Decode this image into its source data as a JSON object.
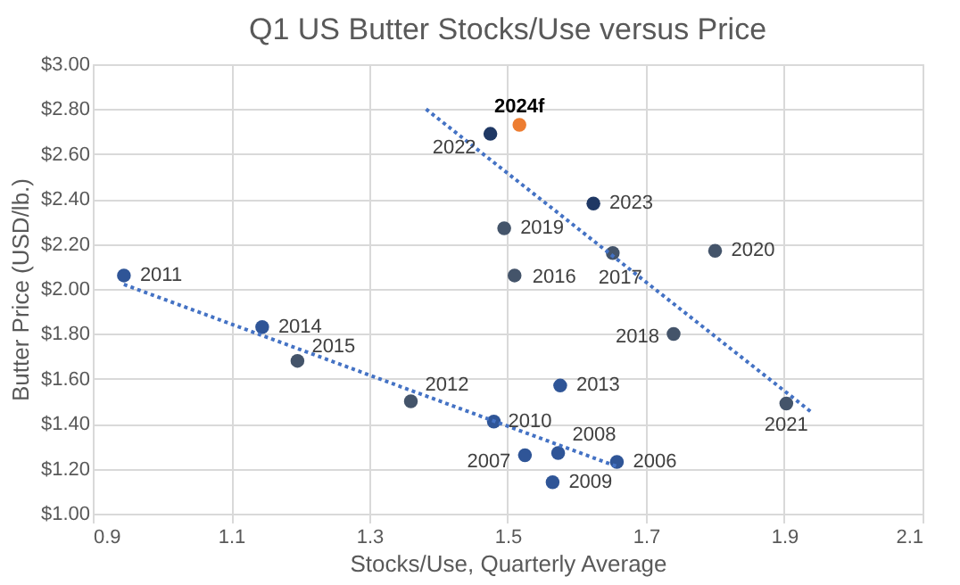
{
  "chart_data": {
    "type": "scatter",
    "title": "Q1 US Butter Stocks/Use versus Price",
    "xlabel": "Stocks/Use, Quarterly Average",
    "ylabel": "Butter Price (USD/lb.)",
    "xlim": [
      0.9,
      2.1
    ],
    "xticks": [
      0.9,
      1.1,
      1.3,
      1.5,
      1.7,
      1.9,
      2.1
    ],
    "ylim": [
      1.0,
      3.0
    ],
    "yticks": [
      {
        "value": 1.0,
        "label": "$1.00"
      },
      {
        "value": 1.2,
        "label": "$1.20"
      },
      {
        "value": 1.4,
        "label": "$1.40"
      },
      {
        "value": 1.6,
        "label": "$1.60"
      },
      {
        "value": 1.8,
        "label": "$1.80"
      },
      {
        "value": 2.0,
        "label": "$2.00"
      },
      {
        "value": 2.2,
        "label": "$2.20"
      },
      {
        "value": 2.4,
        "label": "$2.40"
      },
      {
        "value": 2.6,
        "label": "$2.60"
      },
      {
        "value": 2.8,
        "label": "$2.80"
      },
      {
        "value": 3.0,
        "label": "$3.00"
      }
    ],
    "grid": true,
    "legend": false,
    "series": [
      {
        "type": "scatter",
        "marker": "circle",
        "x": [
          0.945,
          1.145,
          1.196,
          1.36,
          1.48,
          1.525,
          1.573,
          1.658,
          1.565,
          1.576,
          1.903,
          1.475,
          1.517,
          1.624,
          1.495,
          1.652,
          1.8,
          1.51,
          1.74
        ],
        "values": [
          2.06,
          1.83,
          1.68,
          1.5,
          1.41,
          1.26,
          1.27,
          1.23,
          1.14,
          1.57,
          1.49,
          2.69,
          2.73,
          2.38,
          2.27,
          2.16,
          2.17,
          2.06,
          1.8
        ],
        "colors": [
          "#2f5597",
          "#2f5597",
          "#44546a",
          "#44546a",
          "#2f5597",
          "#2f5597",
          "#2f5597",
          "#2f5597",
          "#2f5597",
          "#2f5597",
          "#44546a",
          "#1f3864",
          "#ed7d31",
          "#1f3864",
          "#44546a",
          "#44546a",
          "#44546a",
          "#44546a",
          "#44546a"
        ]
      },
      {
        "type": "line",
        "marker": "none",
        "line_style": "dotted",
        "color": "#4472c4",
        "x": [
          0.945,
          1.658
        ],
        "values": [
          2.02,
          1.21
        ]
      },
      {
        "type": "line",
        "marker": "none",
        "line_style": "dotted",
        "color": "#4472c4",
        "x": [
          1.382,
          1.94
        ],
        "values": [
          2.8,
          1.45
        ]
      }
    ],
    "annotations": [
      {
        "text": "2011",
        "x": 0.945,
        "y": 2.06
      },
      {
        "text": "2014",
        "x": 1.145,
        "y": 1.83
      },
      {
        "text": "2015",
        "x": 1.196,
        "y": 1.68
      },
      {
        "text": "2012",
        "x": 1.36,
        "y": 1.5
      },
      {
        "text": "2010",
        "x": 1.48,
        "y": 1.41
      },
      {
        "text": "2007",
        "x": 1.525,
        "y": 1.26
      },
      {
        "text": "2008",
        "x": 1.573,
        "y": 1.27
      },
      {
        "text": "2006",
        "x": 1.658,
        "y": 1.23
      },
      {
        "text": "2009",
        "x": 1.565,
        "y": 1.14
      },
      {
        "text": "2013",
        "x": 1.576,
        "y": 1.57
      },
      {
        "text": "2021",
        "x": 1.903,
        "y": 1.49
      },
      {
        "text": "2022",
        "x": 1.475,
        "y": 2.69
      },
      {
        "text": "2024f",
        "x": 1.517,
        "y": 2.73
      },
      {
        "text": "2023",
        "x": 1.624,
        "y": 2.38
      },
      {
        "text": "2019",
        "x": 1.495,
        "y": 2.27
      },
      {
        "text": "2017",
        "x": 1.652,
        "y": 2.16
      },
      {
        "text": "2020",
        "x": 1.8,
        "y": 2.17
      },
      {
        "text": "2016",
        "x": 1.51,
        "y": 2.06
      },
      {
        "text": "2018",
        "x": 1.74,
        "y": 1.8
      }
    ]
  }
}
